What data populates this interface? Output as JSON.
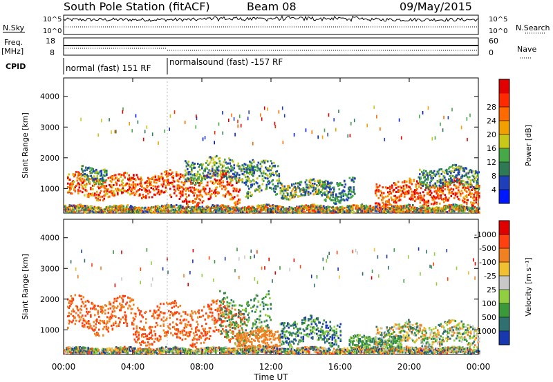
{
  "header": {
    "station": "South Pole Station (fitACF)",
    "beam": "Beam 08",
    "date": "09/May/2015"
  },
  "nsky_panel": {
    "left_label": "N.Sky",
    "right_label": "N.Search",
    "ticks": [
      "10^5",
      "10^0"
    ]
  },
  "freq_panel": {
    "left_label_1": "Freq.",
    "left_label_2": "[MHz]",
    "left_ticks": [
      "18",
      "8"
    ],
    "right_label": "Nave",
    "right_ticks": [
      "60",
      "0"
    ]
  },
  "cpid": {
    "label": "CPID",
    "segments": [
      {
        "start": 0,
        "end": 6,
        "text": "normal (fast) 151 RF"
      },
      {
        "start": 6,
        "end": 24,
        "text": "normalsound (fast) -157 RF"
      }
    ]
  },
  "chart_data": [
    {
      "type": "heatmap",
      "ylabel": "Slant Range [km]",
      "xlabel": "",
      "y_ticks": [
        "1000",
        "2000",
        "3000",
        "4000"
      ],
      "ylim": [
        200,
        4600
      ],
      "colorbar": {
        "label": "Power [dB]",
        "labels": [
          "4",
          "8",
          "12",
          "16",
          "20",
          "24",
          "28"
        ],
        "colors": [
          "#0018ff",
          "#1f3fb8",
          "#2d7a55",
          "#46a846",
          "#c8c81a",
          "#f2a000",
          "#ff6a00",
          "#ff2a00",
          "#e00000"
        ]
      }
    },
    {
      "type": "heatmap",
      "ylabel": "Slant Range [km]",
      "xlabel": "Time UT",
      "x_ticks": [
        "00:00",
        "04:00",
        "08:00",
        "12:00",
        "16:00",
        "20:00",
        "00:00"
      ],
      "y_ticks": [
        "1000",
        "2000",
        "3000",
        "4000"
      ],
      "ylim": [
        200,
        4600
      ],
      "xlim": [
        0,
        24
      ],
      "colorbar": {
        "label": "Velocity [m s⁻¹]",
        "labels": [
          "1000",
          "500",
          "100",
          "25",
          "-25",
          "-100",
          "-500",
          "-1000"
        ],
        "colors": [
          "#1838b0",
          "#2f7070",
          "#3a9a3a",
          "#90d040",
          "#c8c8c8",
          "#f0c030",
          "#f08020",
          "#ff4010",
          "#e00000"
        ]
      }
    }
  ]
}
